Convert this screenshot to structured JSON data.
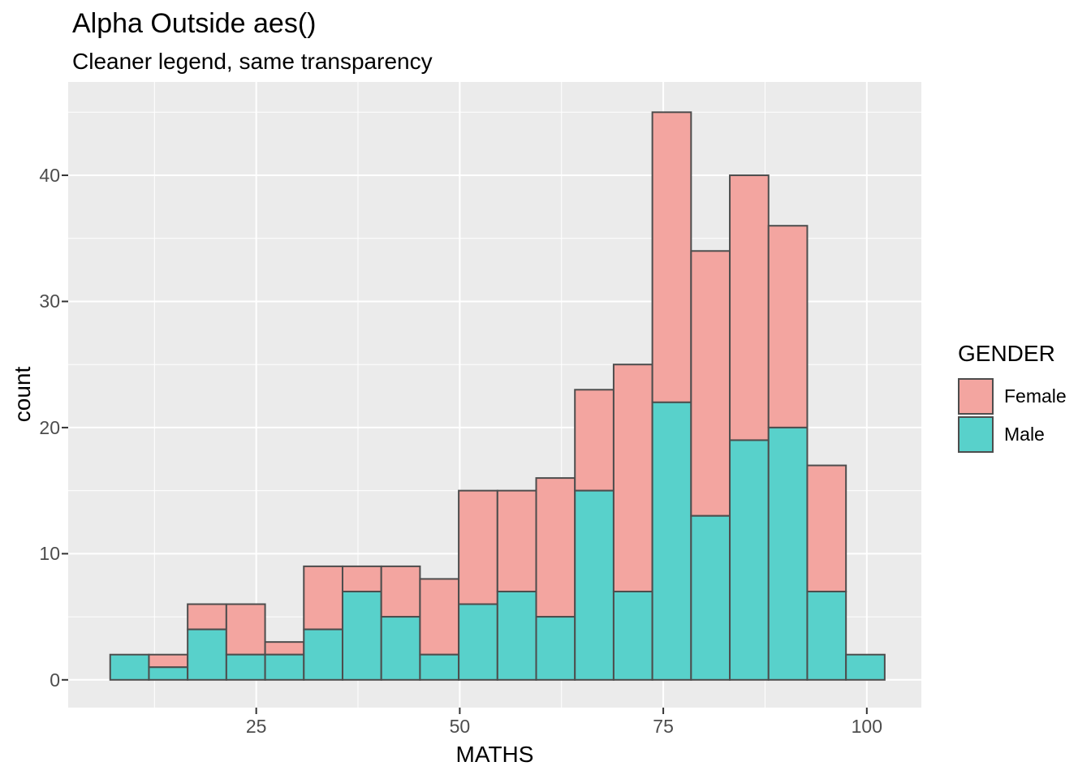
{
  "title": "Alpha Outside aes()",
  "subtitle": "Cleaner legend, same transparency",
  "legend": {
    "title": "GENDER",
    "items": [
      {
        "label": "Female",
        "color": "#F3A5A0"
      },
      {
        "label": "Male",
        "color": "#58D1CB"
      }
    ]
  },
  "chart_data": {
    "type": "bar",
    "subtype": "stacked-histogram",
    "title": "Alpha Outside aes()",
    "subtitle": "Cleaner legend, same transparency",
    "xlabel": "MATHS",
    "ylabel": "count",
    "legend_title": "GENDER",
    "legend_position": "right",
    "bin_start": 7.06,
    "bin_width": 4.757,
    "bin_count": 20,
    "stack_order_bottom_to_top": [
      "Male",
      "Female"
    ],
    "series": [
      {
        "name": "Male",
        "color": "#58D1CB",
        "values": [
          2,
          1,
          4,
          2,
          2,
          4,
          7,
          5,
          2,
          6,
          7,
          5,
          15,
          7,
          22,
          13,
          19,
          20,
          7,
          2
        ]
      },
      {
        "name": "Female",
        "color": "#F3A5A0",
        "values": [
          0,
          1,
          2,
          4,
          1,
          5,
          2,
          4,
          6,
          9,
          8,
          11,
          8,
          18,
          23,
          21,
          21,
          16,
          10,
          0
        ]
      }
    ],
    "stack_totals": [
      2,
      2,
      6,
      6,
      3,
      9,
      9,
      9,
      8,
      15,
      15,
      16,
      23,
      25,
      45,
      34,
      40,
      36,
      17,
      2
    ],
    "x_ticks": [
      25,
      50,
      75,
      100
    ],
    "x_minor_ticks": [
      12.5,
      37.5,
      62.5,
      87.5
    ],
    "y_ticks": [
      0,
      10,
      20,
      30,
      40
    ],
    "y_minor_ticks": [
      5,
      15,
      25,
      35,
      45
    ],
    "x_domain": [
      1.9,
      106.7
    ],
    "y_domain": [
      -2.2,
      47.4
    ],
    "grid": true,
    "panel_bg": "#EBEBEB",
    "grid_color": "#FFFFFF",
    "bar_stroke": "#4D4D4D",
    "tick_mark_color": "#333333",
    "tick_label_color": "#4D4D4D"
  }
}
